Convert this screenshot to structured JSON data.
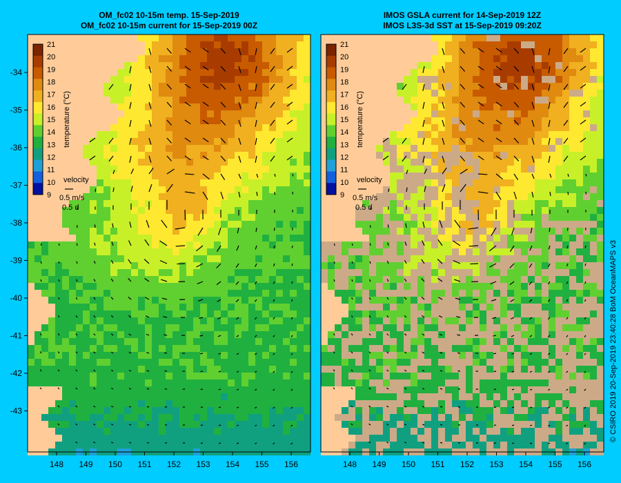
{
  "background_color": "#00ccff",
  "land_color": "#ffcc99",
  "missing_data_color": "#ccaa88",
  "panels": [
    {
      "id": "model",
      "title_line1": "OM_fc02 10-15m temp. 15-Sep-2019",
      "title_line2": "OM_fc02 10-15m current for 15-Sep-2019 00Z",
      "has_missing_data": false
    },
    {
      "id": "observed",
      "title_line1": "IMOS GSLA current for 14-Sep-2019 12Z",
      "title_line2": "IMOS L3S-3d SST at 15-Sep-2019 09:20Z",
      "has_missing_data": true
    }
  ],
  "colorbar": {
    "label": "temperature (°C)",
    "ticks": [
      "21",
      "20",
      "19",
      "18",
      "17",
      "16",
      "15",
      "14",
      "13",
      "12",
      "11",
      "10",
      "9"
    ],
    "colors": [
      "#7a2400",
      "#a83c00",
      "#c85a00",
      "#e08a10",
      "#f0b020",
      "#ffe830",
      "#c8f028",
      "#60d030",
      "#20b040",
      "#10a080",
      "#20a0d8",
      "#1060e0",
      "#0010a0"
    ]
  },
  "velocity_legend": {
    "label": "velocity",
    "speed": "0.5 m/s",
    "duration": "0.5 d"
  },
  "axes": {
    "x_ticks": [
      "148",
      "149",
      "150",
      "151",
      "152",
      "153",
      "154",
      "155",
      "156"
    ],
    "y_ticks": [
      "-34",
      "-35",
      "-36",
      "-37",
      "-38",
      "-39",
      "-40",
      "-41",
      "-42",
      "-43"
    ]
  },
  "credit": "© CSIRO 2019   20-Sep-2019 23:40:28 BoM OceanMAPS v3"
}
